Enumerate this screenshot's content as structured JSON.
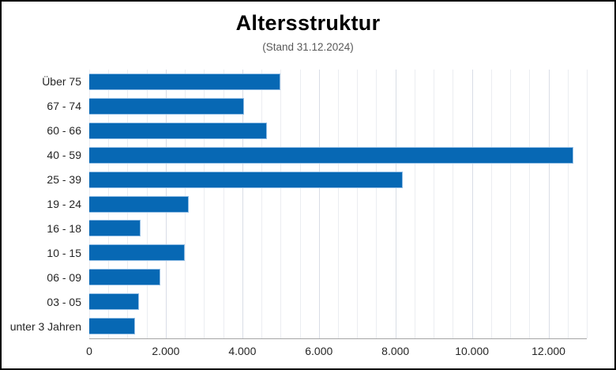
{
  "chart_data": {
    "type": "bar",
    "orientation": "horizontal",
    "title": "Altersstruktur",
    "subtitle": "(Stand 31.12.2024)",
    "categories": [
      "Über 75",
      "67 - 74",
      "60 - 66",
      "40 - 59",
      "25 - 39",
      "19 - 24",
      "16 - 18",
      "10 - 15",
      "06 - 09",
      "03 - 05",
      "unter 3 Jahren"
    ],
    "values": [
      5000,
      4050,
      4650,
      12650,
      8200,
      2600,
      1350,
      2500,
      1850,
      1300,
      1200
    ],
    "xlabel": "",
    "ylabel": "",
    "xlim": [
      0,
      13000
    ],
    "x_major_unit": 2000,
    "x_minor_gridline_unit": 500,
    "x_tick_labels": [
      "0",
      "2.000",
      "4.000",
      "6.000",
      "8.000",
      "10.000",
      "12.000"
    ],
    "grid": true,
    "legend": false,
    "colors": {
      "background": "#ffffff",
      "canvas_border": "#000000",
      "bar": "#0768b4",
      "bar_border": "#8fbce4",
      "gridline_minor": "#ebedf1",
      "gridline_major": "#d9dde6",
      "axis_line": "#a6a6a6",
      "title_text": "#000000",
      "subtitle_text": "#595959",
      "label_text": "#262626"
    }
  }
}
